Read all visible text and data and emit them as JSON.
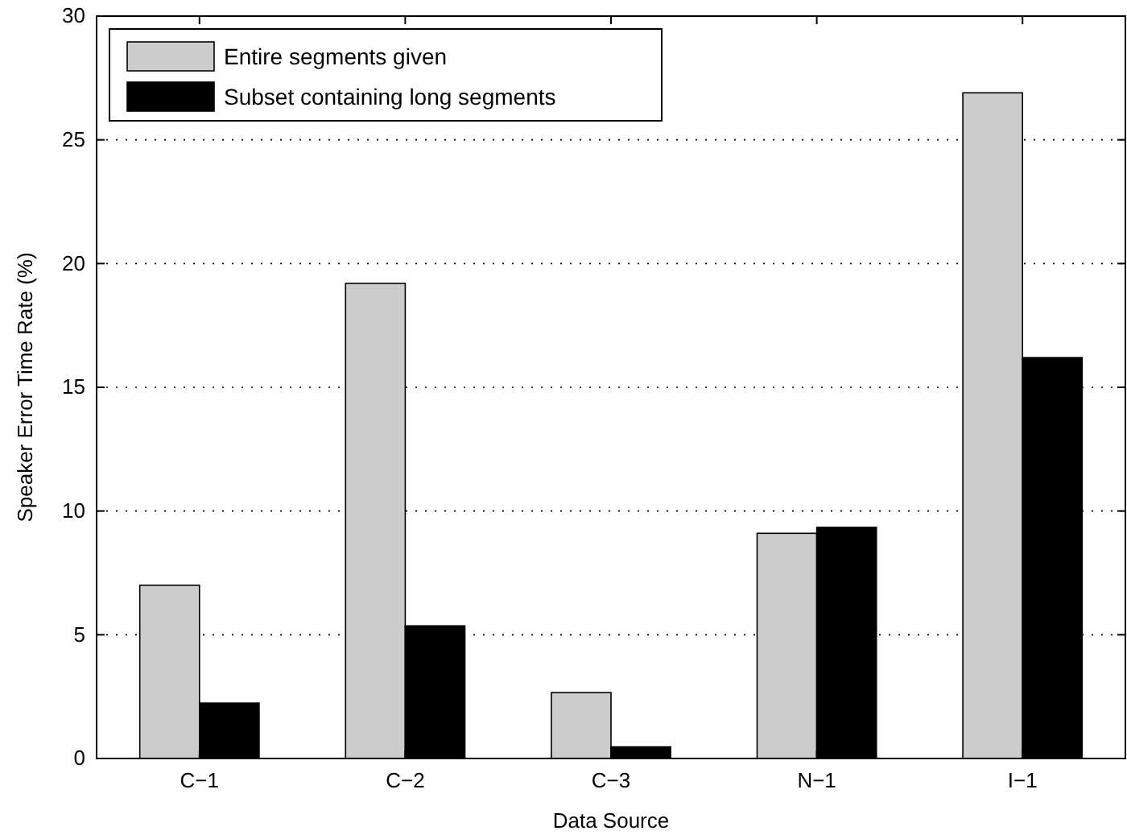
{
  "chart_data": {
    "type": "bar",
    "xlabel": "Data Source",
    "ylabel": "Speaker Error Time Rate (%)",
    "categories": [
      "C−1",
      "C−2",
      "C−3",
      "N−1",
      "I−1"
    ],
    "series": [
      {
        "name": "Entire segments given",
        "color": "#cccccc",
        "values": [
          7.0,
          19.2,
          2.66,
          9.1,
          26.9
        ]
      },
      {
        "name": "Subset containing long segments",
        "color": "#000000",
        "values": [
          2.24,
          5.36,
          0.47,
          9.34,
          16.2
        ]
      }
    ],
    "ylim": [
      0,
      30
    ],
    "yticks": [
      0,
      5,
      10,
      15,
      20,
      25,
      30
    ],
    "grid": "y",
    "legend": "top left"
  }
}
